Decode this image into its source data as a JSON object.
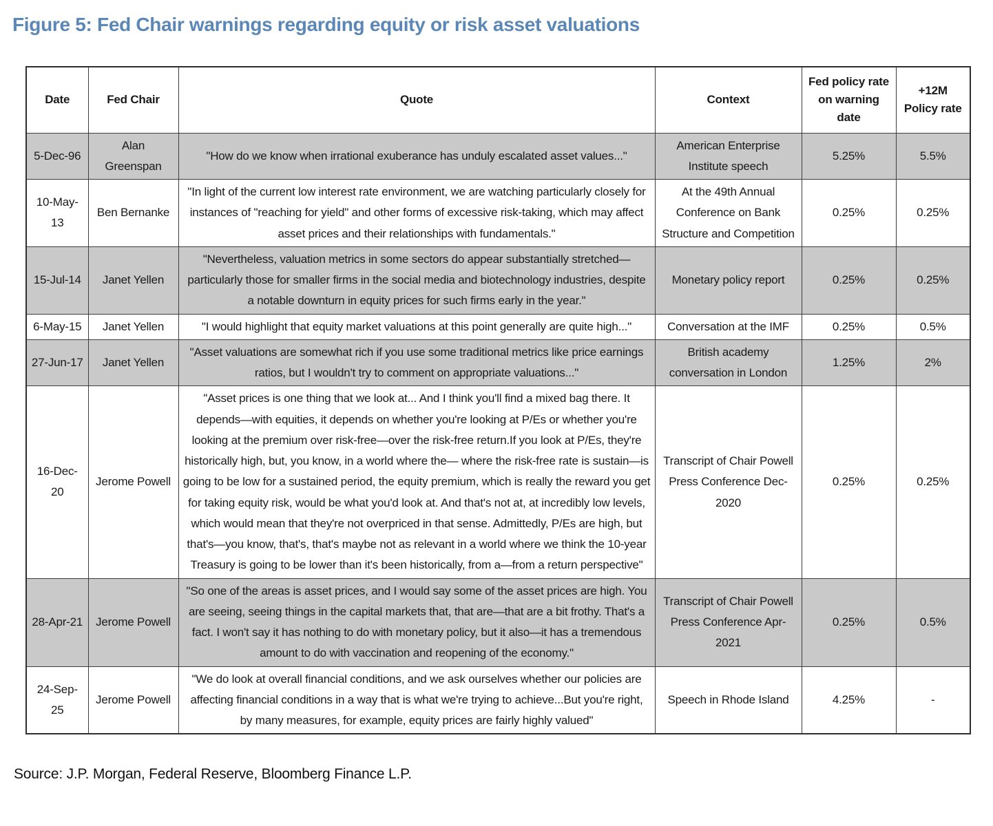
{
  "title": "Figure 5: Fed Chair warnings regarding equity or risk asset valuations",
  "source": "Source: J.P. Morgan, Federal Reserve, Bloomberg Finance L.P.",
  "colors": {
    "title_blue": "#5b87b7",
    "row_shade_gray": "#c9c9c9",
    "border": "#3c3c3c"
  },
  "table": {
    "headers": {
      "date": "Date",
      "chair": "Fed Chair",
      "quote": "Quote",
      "context": "Context",
      "rate_warning": "Fed policy rate on warning date",
      "rate_12m": "+12M Policy rate"
    },
    "rows": [
      {
        "date": "5-Dec-96",
        "chair": "Alan Greenspan",
        "quote": "\"How do we know when irrational exuberance has unduly escalated asset values...\"",
        "context": "American Enterprise Institute speech",
        "rate_warning": "5.25%",
        "rate_12m": "5.5%"
      },
      {
        "date": "10-May-13",
        "chair": "Ben Bernanke",
        "quote": "\"In light of the current low interest rate environment, we are watching particularly closely for instances of \"reaching for yield\" and other forms of excessive risk-taking, which may affect asset prices and their relationships with fundamentals.\"",
        "context": "At the 49th Annual Conference on Bank Structure and Competition",
        "rate_warning": "0.25%",
        "rate_12m": "0.25%"
      },
      {
        "date": "15-Jul-14",
        "chair": "Janet Yellen",
        "quote": "\"Nevertheless, valuation metrics in some sectors do appear substantially stretched—particularly those for smaller firms in the social media and biotechnology industries, despite a notable downturn in equity prices for such firms early in the year.\"",
        "context": "Monetary policy report",
        "rate_warning": "0.25%",
        "rate_12m": "0.25%"
      },
      {
        "date": "6-May-15",
        "chair": "Janet Yellen",
        "quote": "\"I would highlight that equity market valuations at this point generally are quite high...\"",
        "context": "Conversation at the IMF",
        "rate_warning": "0.25%",
        "rate_12m": "0.5%"
      },
      {
        "date": "27-Jun-17",
        "chair": "Janet Yellen",
        "quote": "\"Asset valuations are somewhat rich if you use some traditional metrics like price earnings ratios, but I wouldn't try to comment on appropriate valuations...\"",
        "context": "British academy conversation in London",
        "rate_warning": "1.25%",
        "rate_12m": "2%"
      },
      {
        "date": "16-Dec-20",
        "chair": "Jerome Powell",
        "quote": "\"Asset prices is one thing that we look at... And I think you'll find a mixed bag there. It depends—with equities, it depends on whether you're looking at P/Es or whether you're looking at the premium over risk-free—over the risk-free return.If you look at P/Es, they're historically high, but, you know, in a world where the— where the risk-free rate is sustain—is going to be low for a sustained period, the equity premium, which is really the reward you get for taking equity risk, would be what you'd look at. And that's not at, at incredibly low levels, which would mean that they're not overpriced in that sense. Admittedly, P/Es are high, but that's—you know, that's, that's maybe not as relevant in a world where we think the 10-year Treasury is going to be lower than it's been historically, from a—from a return perspective\"",
        "context": "Transcript of Chair Powell Press Conference Dec-2020",
        "rate_warning": "0.25%",
        "rate_12m": "0.25%"
      },
      {
        "date": "28-Apr-21",
        "chair": "Jerome Powell",
        "quote": "\"So one of the areas is asset prices, and I would say some of the asset prices are high. You are seeing, seeing things in the capital markets that, that are—that are a bit frothy. That's a fact. I won't say it has nothing to do with monetary policy, but it also—it has a tremendous amount to do with vaccination and reopening of the economy.\"",
        "context": "Transcript of Chair Powell Press Conference Apr-2021",
        "rate_warning": "0.25%",
        "rate_12m": "0.5%"
      },
      {
        "date": "24-Sep-25",
        "chair": "Jerome Powell",
        "quote": "\"We do look at overall financial conditions, and we ask ourselves whether our policies are affecting financial conditions in a way that is what we're trying to achieve...But you're right, by many measures, for example, equity prices are fairly highly valued\"",
        "context": "Speech in Rhode Island",
        "rate_warning": "4.25%",
        "rate_12m": "-"
      }
    ]
  }
}
